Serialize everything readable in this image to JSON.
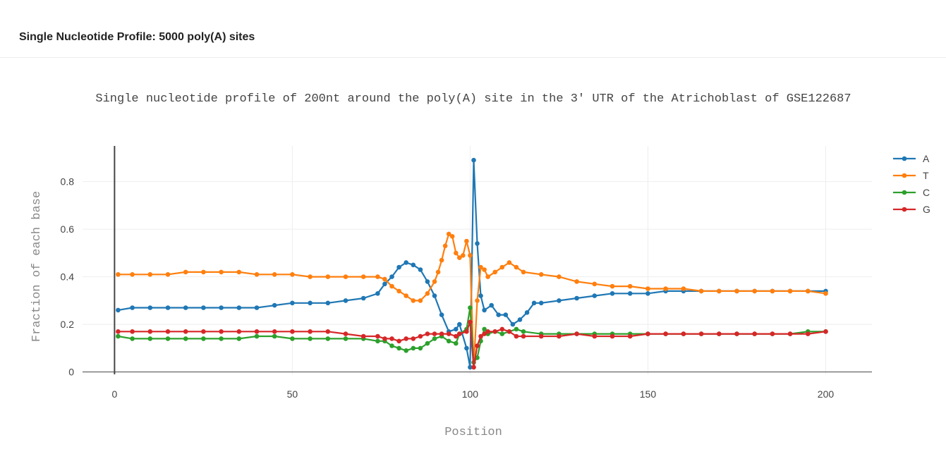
{
  "header": {
    "title": "Single Nucleotide Profile: 5000 poly(A) sites"
  },
  "chart_data": {
    "type": "line",
    "title": "Single nucleotide profile of 200nt around the poly(A) site in the 3' UTR of the Atrichoblast of GSE122687",
    "xlabel": "Position",
    "ylabel": "Fraction of each base",
    "xlim": [
      -9,
      213
    ],
    "ylim": [
      -0.01,
      0.95
    ],
    "xticks": [
      0,
      50,
      100,
      150,
      200
    ],
    "yticks": [
      0,
      0.2,
      0.4,
      0.6,
      0.8
    ],
    "ytick_labels": [
      "0",
      "0.2",
      "0.4",
      "0.6",
      "0.8"
    ],
    "grid": true,
    "legend_position": "top-right",
    "markers": true,
    "series": [
      {
        "name": "A",
        "color": "#1f77b4",
        "x": [
          1,
          5,
          10,
          15,
          20,
          25,
          30,
          35,
          40,
          45,
          50,
          55,
          60,
          65,
          70,
          74,
          76,
          78,
          80,
          82,
          84,
          86,
          88,
          90,
          92,
          94,
          96,
          97,
          99,
          100,
          101,
          102,
          103,
          104,
          106,
          108,
          110,
          112,
          114,
          116,
          118,
          120,
          125,
          130,
          135,
          140,
          145,
          150,
          155,
          160,
          165,
          170,
          175,
          180,
          185,
          190,
          195,
          200
        ],
        "y": [
          0.26,
          0.27,
          0.27,
          0.27,
          0.27,
          0.27,
          0.27,
          0.27,
          0.27,
          0.28,
          0.29,
          0.29,
          0.29,
          0.3,
          0.31,
          0.33,
          0.37,
          0.4,
          0.44,
          0.46,
          0.45,
          0.43,
          0.38,
          0.32,
          0.24,
          0.17,
          0.18,
          0.2,
          0.1,
          0.02,
          0.89,
          0.54,
          0.32,
          0.26,
          0.28,
          0.24,
          0.24,
          0.2,
          0.22,
          0.25,
          0.29,
          0.29,
          0.3,
          0.31,
          0.32,
          0.33,
          0.33,
          0.33,
          0.34,
          0.34,
          0.34,
          0.34,
          0.34,
          0.34,
          0.34,
          0.34,
          0.34,
          0.34
        ]
      },
      {
        "name": "T",
        "color": "#ff7f0e",
        "x": [
          1,
          5,
          10,
          15,
          20,
          25,
          30,
          35,
          40,
          45,
          50,
          55,
          60,
          65,
          70,
          74,
          76,
          78,
          80,
          82,
          84,
          86,
          88,
          90,
          91,
          92,
          93,
          94,
          95,
          96,
          97,
          98,
          99,
          100,
          101,
          102,
          103,
          104,
          105,
          107,
          109,
          111,
          113,
          115,
          120,
          125,
          130,
          135,
          140,
          145,
          150,
          155,
          160,
          165,
          170,
          175,
          180,
          185,
          190,
          195,
          200
        ],
        "y": [
          0.41,
          0.41,
          0.41,
          0.41,
          0.42,
          0.42,
          0.42,
          0.42,
          0.41,
          0.41,
          0.41,
          0.4,
          0.4,
          0.4,
          0.4,
          0.4,
          0.39,
          0.36,
          0.34,
          0.32,
          0.3,
          0.3,
          0.33,
          0.38,
          0.42,
          0.47,
          0.53,
          0.58,
          0.57,
          0.5,
          0.48,
          0.49,
          0.55,
          0.49,
          0.02,
          0.3,
          0.44,
          0.43,
          0.4,
          0.42,
          0.44,
          0.46,
          0.44,
          0.42,
          0.41,
          0.4,
          0.38,
          0.37,
          0.36,
          0.36,
          0.35,
          0.35,
          0.35,
          0.34,
          0.34,
          0.34,
          0.34,
          0.34,
          0.34,
          0.34,
          0.33
        ]
      },
      {
        "name": "C",
        "color": "#2ca02c",
        "x": [
          1,
          5,
          10,
          15,
          20,
          25,
          30,
          35,
          40,
          45,
          50,
          55,
          60,
          65,
          70,
          74,
          76,
          78,
          80,
          82,
          84,
          86,
          88,
          90,
          92,
          94,
          96,
          97,
          99,
          100,
          101,
          102,
          103,
          104,
          105,
          107,
          109,
          111,
          113,
          115,
          120,
          125,
          130,
          135,
          140,
          145,
          150,
          155,
          160,
          165,
          170,
          175,
          180,
          185,
          190,
          195,
          200
        ],
        "y": [
          0.15,
          0.14,
          0.14,
          0.14,
          0.14,
          0.14,
          0.14,
          0.14,
          0.15,
          0.15,
          0.14,
          0.14,
          0.14,
          0.14,
          0.14,
          0.13,
          0.13,
          0.11,
          0.1,
          0.09,
          0.1,
          0.1,
          0.12,
          0.14,
          0.15,
          0.13,
          0.12,
          0.16,
          0.18,
          0.27,
          0.04,
          0.06,
          0.13,
          0.18,
          0.16,
          0.17,
          0.16,
          0.17,
          0.18,
          0.17,
          0.16,
          0.16,
          0.16,
          0.16,
          0.16,
          0.16,
          0.16,
          0.16,
          0.16,
          0.16,
          0.16,
          0.16,
          0.16,
          0.16,
          0.16,
          0.17,
          0.17
        ]
      },
      {
        "name": "G",
        "color": "#d62728",
        "x": [
          1,
          5,
          10,
          15,
          20,
          25,
          30,
          35,
          40,
          45,
          50,
          55,
          60,
          65,
          70,
          74,
          76,
          78,
          80,
          82,
          84,
          86,
          88,
          90,
          92,
          94,
          96,
          97,
          99,
          100,
          101,
          102,
          103,
          104,
          105,
          107,
          109,
          111,
          113,
          115,
          120,
          125,
          130,
          135,
          140,
          145,
          150,
          155,
          160,
          165,
          170,
          175,
          180,
          185,
          190,
          195,
          200
        ],
        "y": [
          0.17,
          0.17,
          0.17,
          0.17,
          0.17,
          0.17,
          0.17,
          0.17,
          0.17,
          0.17,
          0.17,
          0.17,
          0.17,
          0.16,
          0.15,
          0.15,
          0.14,
          0.14,
          0.13,
          0.14,
          0.14,
          0.15,
          0.16,
          0.16,
          0.16,
          0.16,
          0.15,
          0.16,
          0.17,
          0.21,
          0.02,
          0.11,
          0.15,
          0.16,
          0.17,
          0.17,
          0.18,
          0.17,
          0.15,
          0.15,
          0.15,
          0.15,
          0.16,
          0.15,
          0.15,
          0.15,
          0.16,
          0.16,
          0.16,
          0.16,
          0.16,
          0.16,
          0.16,
          0.16,
          0.16,
          0.16,
          0.17
        ]
      }
    ]
  }
}
